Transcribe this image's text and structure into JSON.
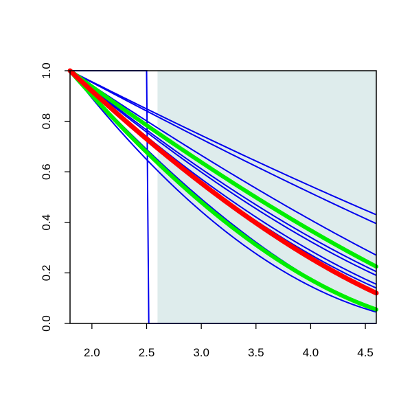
{
  "chart_data": {
    "type": "line",
    "title": "",
    "xlabel": "",
    "ylabel": "",
    "xlim": [
      1.8,
      4.6
    ],
    "ylim": [
      0.0,
      1.0
    ],
    "x_ticks": [
      "2.0",
      "2.5",
      "3.0",
      "3.5",
      "4.0",
      "4.5"
    ],
    "y_ticks": [
      "0.0",
      "0.2",
      "0.4",
      "0.6",
      "0.8",
      "1.0"
    ],
    "grid": false,
    "legend": "none",
    "shaded_region": {
      "x_from": 2.6,
      "x_to": 4.6,
      "color": "#deecec"
    },
    "step_curve": {
      "color": "#0000ee",
      "points": [
        [
          1.8,
          1.0
        ],
        [
          2.5,
          1.0
        ],
        [
          2.52,
          0.0
        ],
        [
          4.6,
          0.0
        ]
      ]
    },
    "blue_curves": {
      "color": "#0000ee",
      "x0": 1.8,
      "curves": [
        {
          "end": 0.43,
          "exp": 1.25
        },
        {
          "end": 0.395,
          "exp": 1.2
        },
        {
          "end": 0.27,
          "exp": 1.25
        },
        {
          "end": 0.205,
          "exp": 1.5
        },
        {
          "end": 0.19,
          "exp": 1.55
        },
        {
          "end": 0.155,
          "exp": 1.6
        },
        {
          "end": 0.14,
          "exp": 1.62
        },
        {
          "end": 0.045,
          "exp": 1.95
        },
        {
          "end": 0.05,
          "exp": 1.55
        }
      ]
    },
    "green_curves": {
      "color": "#00ee00",
      "curves": [
        {
          "end": 0.225,
          "exp": 1.3
        },
        {
          "end": 0.055,
          "exp": 1.7
        }
      ]
    },
    "red_curve": {
      "color": "#ff0000",
      "curve": {
        "end": 0.12,
        "exp": 1.5
      }
    }
  }
}
